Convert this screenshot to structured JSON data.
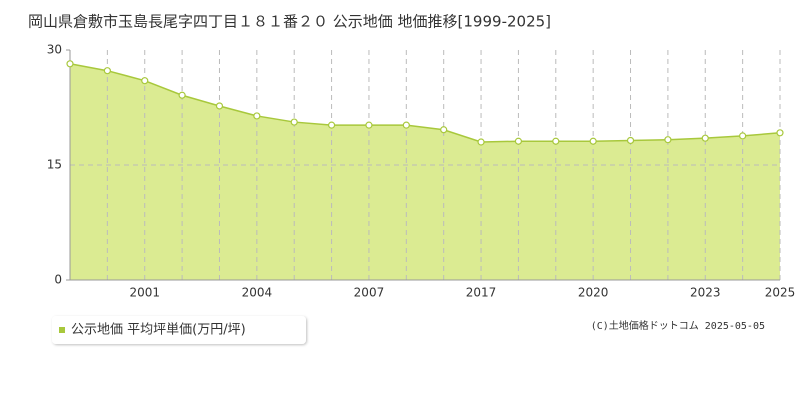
{
  "chart_data": {
    "type": "area",
    "title": "岡山県倉敷市玉島長尾字四丁目１８１番２０ 公示地価 地価推移[1999-2025]",
    "categories": [
      null,
      null,
      "2001",
      null,
      null,
      "2004",
      null,
      null,
      "2007",
      null,
      null,
      "2017",
      null,
      null,
      "2020",
      null,
      null,
      "2023",
      null,
      "2025"
    ],
    "series": [
      {
        "name": "公示地価 平均坪単価(万円/坪)",
        "color": "#a8c83c",
        "fill": "#dbeb92",
        "values": [
          28.2,
          27.3,
          26.0,
          24.1,
          22.7,
          21.4,
          20.6,
          20.2,
          20.2,
          20.2,
          19.6,
          18.0,
          18.1,
          18.1,
          18.1,
          18.2,
          18.3,
          18.5,
          18.8,
          19.2
        ]
      }
    ],
    "ylim": [
      0,
      30
    ],
    "yticks": [
      0,
      15,
      30
    ],
    "grid": true,
    "legend": "bottom-left",
    "footer": "(C)土地価格ドットコム 2025-05-05"
  }
}
